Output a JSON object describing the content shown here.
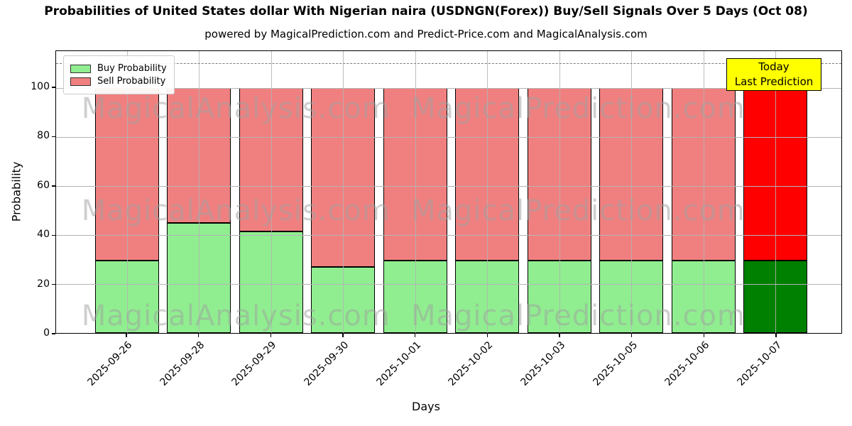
{
  "header": {
    "title": "Probabilities of United States dollar With Nigerian naira (USDNGN(Forex)) Buy/Sell Signals Over 5 Days (Oct 08)",
    "subtitle": "powered by MagicalPrediction.com and Predict-Price.com and MagicalAnalysis.com"
  },
  "legend": {
    "items": [
      {
        "label": "Buy Probability",
        "color": "#90EE90"
      },
      {
        "label": "Sell Probability",
        "color": "#F08080"
      }
    ]
  },
  "annotation": {
    "line1": "Today",
    "line2": "Last Prediction",
    "bg_color": "#FFFF00"
  },
  "axes": {
    "xlabel": "Days",
    "ylabel": "Probability"
  },
  "chart_data": {
    "type": "bar",
    "stacked": true,
    "title": "Probabilities of United States dollar With Nigerian naira (USDNGN(Forex)) Buy/Sell Signals Over 5 Days (Oct 08)",
    "xlabel": "Days",
    "ylabel": "Probability",
    "ylim": [
      0,
      115
    ],
    "yticks": [
      0,
      20,
      40,
      60,
      80,
      100
    ],
    "grid": true,
    "legend_position": "upper left",
    "dashed_guideline_y": 110,
    "categories": [
      "2025-09-26",
      "2025-09-28",
      "2025-09-29",
      "2025-09-30",
      "2025-10-01",
      "2025-10-02",
      "2025-10-03",
      "2025-10-05",
      "2025-10-06",
      "2025-10-07"
    ],
    "series": [
      {
        "name": "Buy Probability",
        "color": "#90EE90",
        "values": [
          29.5,
          45,
          41.5,
          27,
          29.5,
          29.5,
          29.5,
          29.5,
          29.5,
          29.5
        ]
      },
      {
        "name": "Sell Probability",
        "color": "#F08080",
        "values": [
          70.5,
          55,
          58.5,
          73,
          70.5,
          70.5,
          70.5,
          70.5,
          70.5,
          70.5
        ]
      }
    ],
    "today_index": 9,
    "today_colors": {
      "buy": "#008000",
      "sell": "#FF0000"
    },
    "watermarks": [
      "MagicalAnalysis.com",
      "MagicalPrediction.com"
    ]
  }
}
